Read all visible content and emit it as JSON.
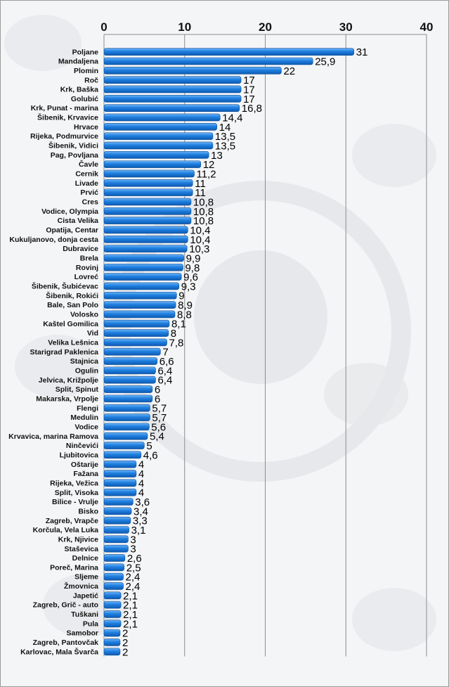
{
  "chart_data": {
    "type": "bar",
    "orientation": "horizontal",
    "xlim": [
      0,
      40
    ],
    "ticks": [
      "0",
      "10",
      "20",
      "30",
      "40"
    ],
    "grid": true,
    "bar_color": "#1e7fe0",
    "categories": [
      "Poljane",
      "Mandaljena",
      "Plomin",
      "Roč",
      "Krk, Baška",
      "Golubić",
      "Krk, Punat - marina",
      "Šibenik, Krvavice",
      "Hrvace",
      "Rijeka, Podmurvice",
      "Šibenik, Vidici",
      "Pag, Povljana",
      "Čavle",
      "Cernik",
      "Livade",
      "Prvić",
      "Cres",
      "Vodice, Olympia",
      "Cista Velika",
      "Opatija, Centar",
      "Kukuljanovo, donja cesta",
      "Dubravice",
      "Brela",
      "Rovinj",
      "Lovreć",
      "Šibenik, Šubićevac",
      "Šibenik, Rokići",
      "Bale, San Polo",
      "Volosko",
      "Kaštel Gomilica",
      "Vid",
      "Velika Lešnica",
      "Starigrad Paklenica",
      "Stajnica",
      "Ogulin",
      "Jelvica, Križpolje",
      "Split, Spinut",
      "Makarska, Vrpolje",
      "Flengi",
      "Medulin",
      "Vodice",
      "Krvavica, marina Ramova",
      "Ninčevići",
      "Ljubitovica",
      "Oštarije",
      "Fažana",
      "Rijeka, Vežica",
      "Split, Visoka",
      "Bilice - Vrulje",
      "Bisko",
      "Zagreb, Vrapče",
      "Korčula, Vela Luka",
      "Krk, Njivice",
      "Staševica",
      "Delnice",
      "Poreč, Marina",
      "Sljeme",
      "Žmovnica",
      "Japetić",
      "Zagreb, Grič - auto",
      "Tuškani",
      "Pula",
      "Samobor",
      "Zagreb, Pantovčak",
      "Karlovac, Mala Švarča"
    ],
    "values": [
      31,
      25.9,
      22,
      17,
      17,
      17,
      16.8,
      14.4,
      14,
      13.5,
      13.5,
      13,
      12,
      11.2,
      11,
      11,
      10.8,
      10.8,
      10.8,
      10.4,
      10.4,
      10.3,
      9.9,
      9.8,
      9.6,
      9.3,
      9,
      8.9,
      8.8,
      8.1,
      8,
      7.8,
      7,
      6.6,
      6.4,
      6.4,
      6,
      6,
      5.7,
      5.7,
      5.6,
      5.4,
      5,
      4.6,
      4,
      4,
      4,
      4,
      3.6,
      3.4,
      3.3,
      3.1,
      3,
      3,
      2.6,
      2.5,
      2.4,
      2.4,
      2.1,
      2.1,
      2.1,
      2.1,
      2,
      2,
      2
    ],
    "value_labels": [
      "31",
      "25,9",
      "22",
      "17",
      "17",
      "17",
      "16,8",
      "14,4",
      "14",
      "13,5",
      "13,5",
      "13",
      "12",
      "11,2",
      "11",
      "11",
      "10,8",
      "10,8",
      "10,8",
      "10,4",
      "10,4",
      "10,3",
      "9,9",
      "9,8",
      "9,6",
      "9,3",
      "9",
      "8,9",
      "8,8",
      "8,1",
      "8",
      "7,8",
      "7",
      "6,6",
      "6,4",
      "6,4",
      "6",
      "6",
      "5,7",
      "5,7",
      "5,6",
      "5,4",
      "5",
      "4,6",
      "4",
      "4",
      "4",
      "4",
      "3,6",
      "3,4",
      "3,3",
      "3,1",
      "3",
      "3",
      "2,6",
      "2,5",
      "2,4",
      "2,4",
      "2,1",
      "2,1",
      "2,1",
      "2,1",
      "2",
      "2",
      "2"
    ]
  }
}
